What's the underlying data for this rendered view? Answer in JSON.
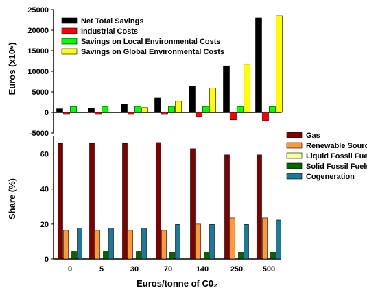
{
  "chart_data": [
    {
      "type": "bar",
      "categories": [
        "0",
        "5",
        "30",
        "70",
        "140",
        "250",
        "500"
      ],
      "ylabel": "Euros (x10⁶)",
      "ylim": [
        -5000,
        25000
      ],
      "yticks": [
        "25000",
        "20000",
        "15000",
        "10000",
        "5000",
        "0",
        "-5000"
      ],
      "legend_position": "top-left",
      "grid": false,
      "series": [
        {
          "name": "Net Total Savings",
          "color": "#000000",
          "values": [
            900,
            1000,
            2000,
            3500,
            6300,
            11300,
            23000
          ]
        },
        {
          "name": "Industrial Costs",
          "color": "#ff0000",
          "values": [
            -500,
            -500,
            -500,
            -500,
            -1000,
            -1800,
            -2000
          ]
        },
        {
          "name": "Savings on Local Environmental Costs",
          "color": "#00ff00",
          "values": [
            1500,
            1500,
            1500,
            1500,
            1500,
            1500,
            1500
          ]
        },
        {
          "name": "Savings on Global Environmental Costs",
          "color": "#ffff00",
          "values": [
            0,
            0,
            1200,
            2700,
            5900,
            11700,
            23500
          ]
        }
      ]
    },
    {
      "type": "bar",
      "categories": [
        "0",
        "5",
        "30",
        "70",
        "140",
        "250",
        "500"
      ],
      "xlabel": "Euros/tonne of C0₂",
      "ylabel": "Share (%)",
      "ylim": [
        0,
        70
      ],
      "yticks": [
        "60",
        "40",
        "20",
        "0"
      ],
      "legend_position": "top-right",
      "grid": false,
      "series": [
        {
          "name": "Gas",
          "color": "#800000",
          "values": [
            66,
            66,
            66,
            66.5,
            63,
            59.5,
            59.5
          ]
        },
        {
          "name": "Renewable Sources",
          "color": "#ff9933",
          "values": [
            16.5,
            16.5,
            16.5,
            16.5,
            20,
            23.5,
            23.5
          ]
        },
        {
          "name": "Liquid Fossil Fuels",
          "color": "#ffff99",
          "values": [
            0,
            0,
            0,
            0,
            0,
            0,
            0
          ]
        },
        {
          "name": "Solid Fossil Fuels",
          "color": "#006600",
          "values": [
            4.5,
            4.5,
            4.5,
            4,
            4,
            4,
            4
          ]
        },
        {
          "name": "Cogeneration",
          "color": "#1a7a99",
          "values": [
            17.8,
            17.8,
            17.8,
            19.8,
            19.8,
            19.8,
            22.3
          ]
        }
      ]
    }
  ]
}
